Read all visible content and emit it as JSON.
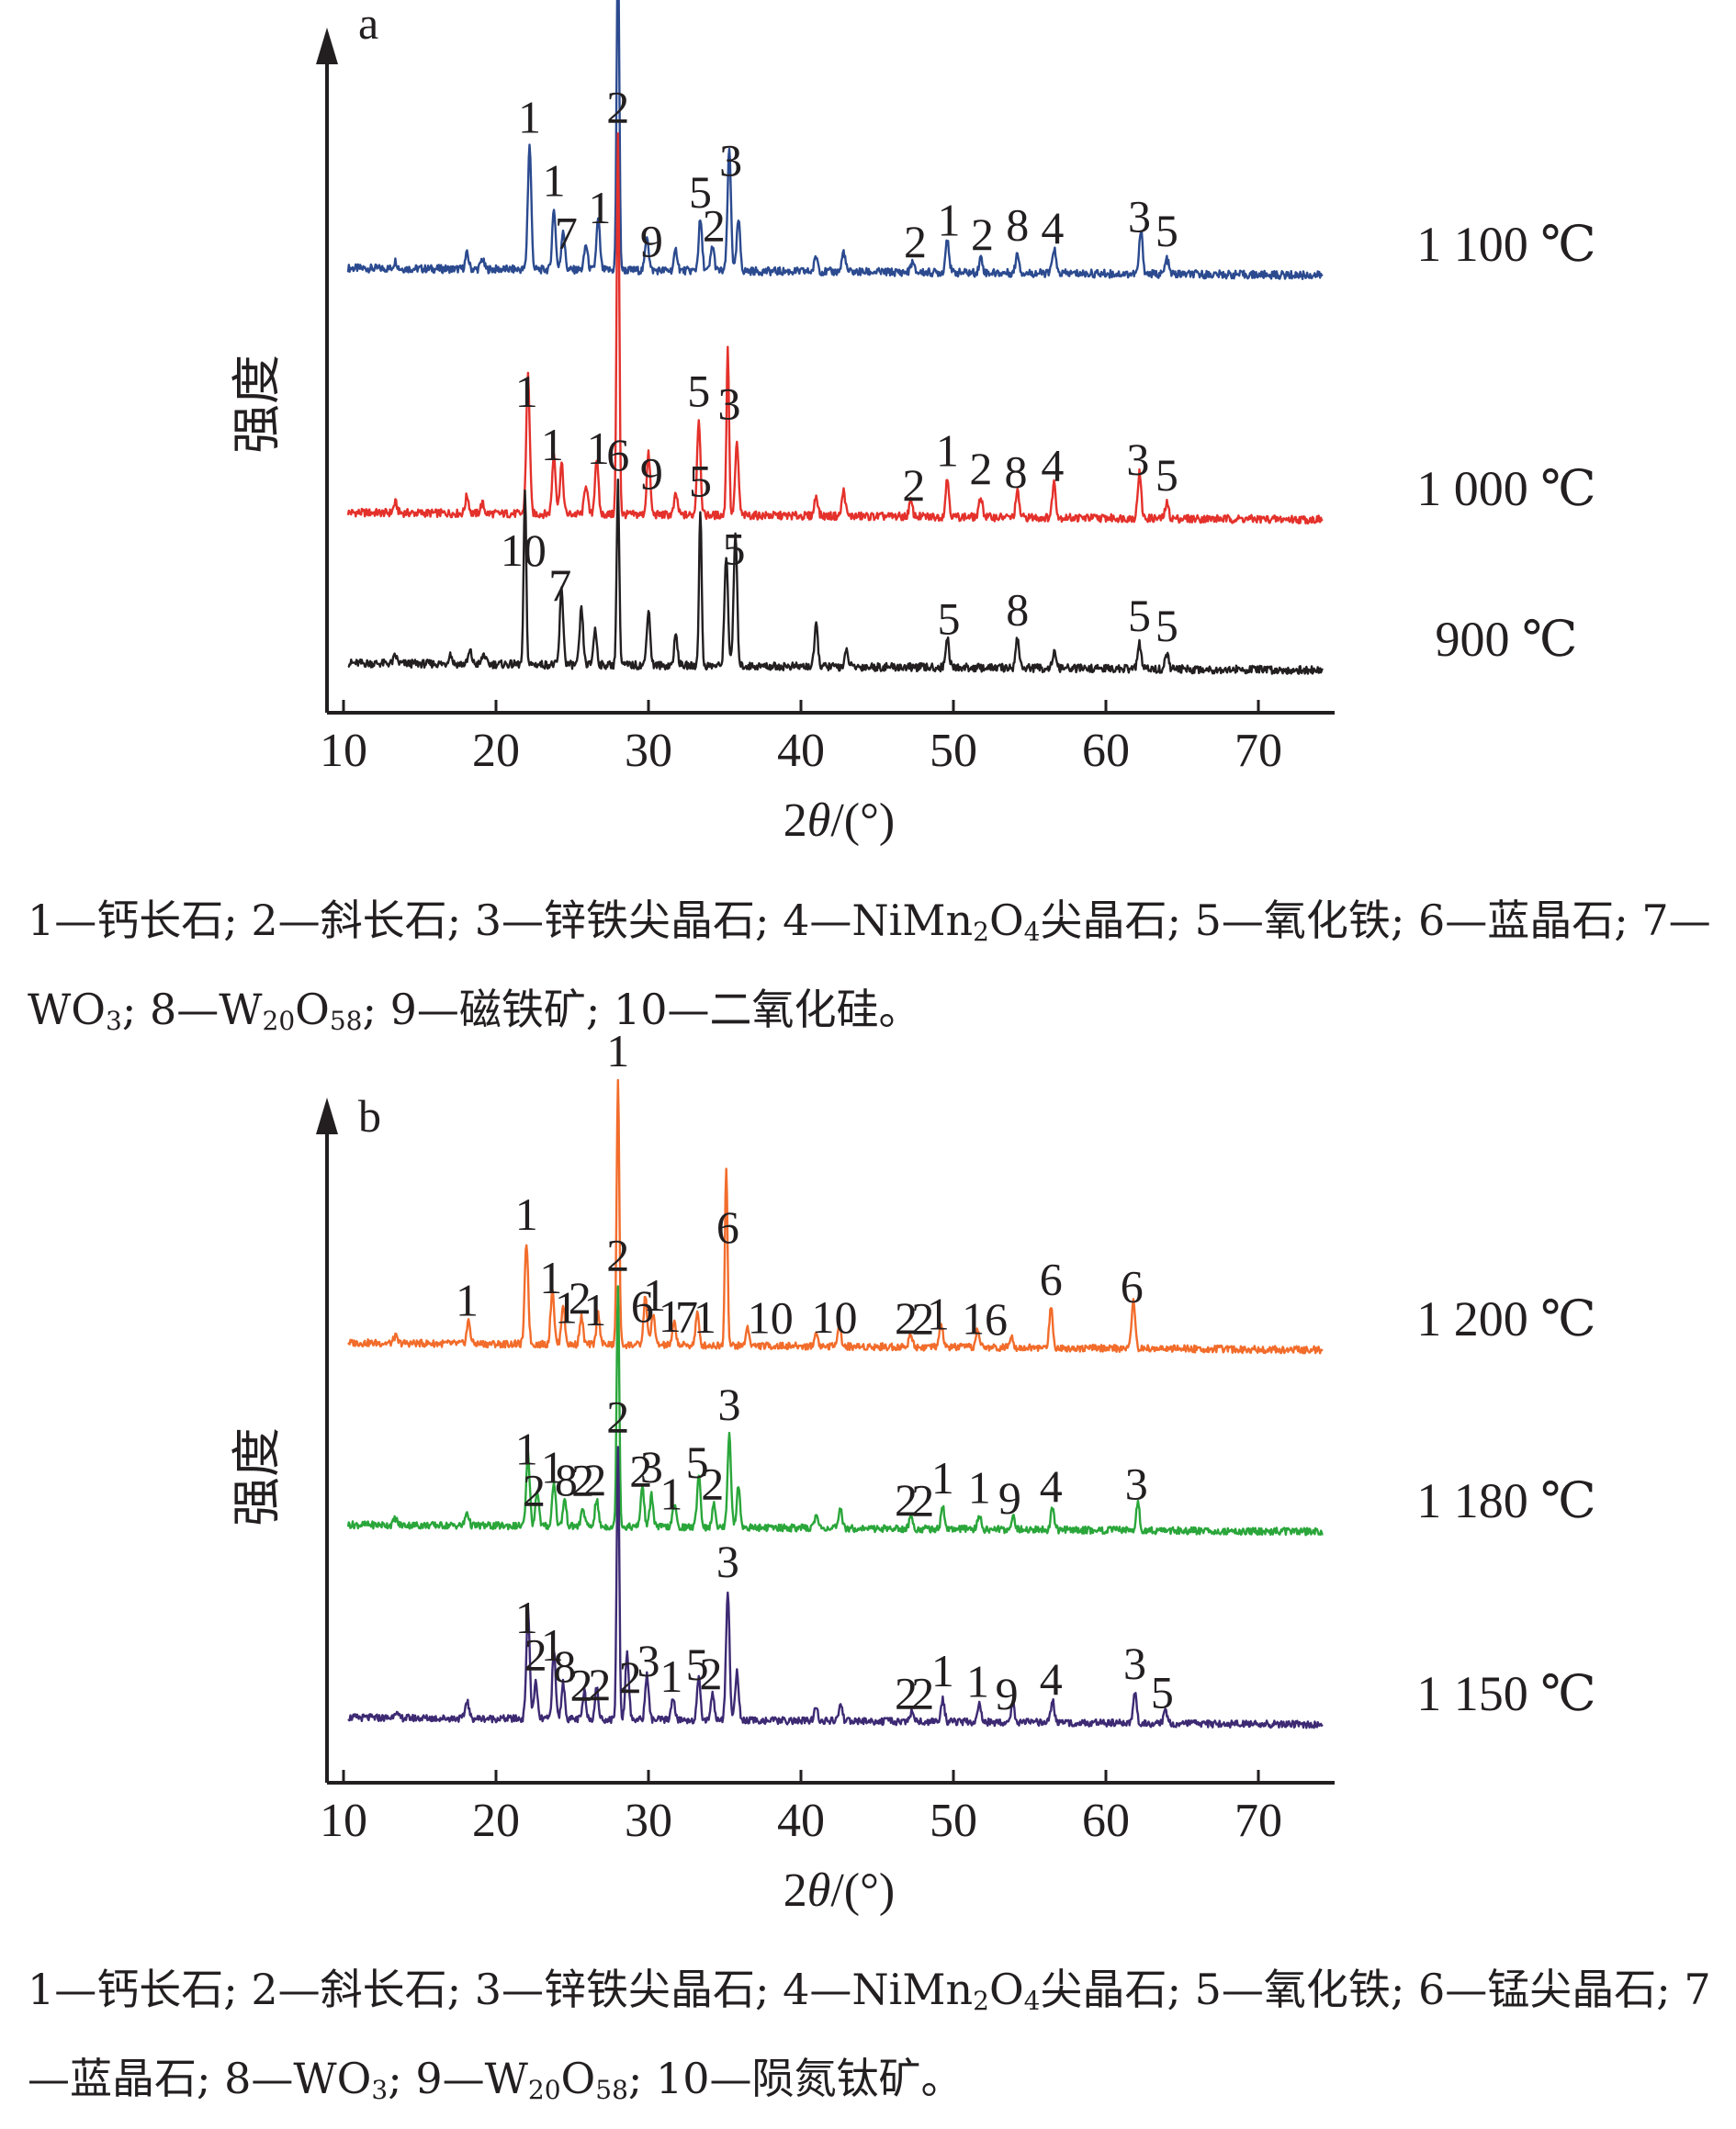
{
  "chart_data": [
    {
      "type": "line",
      "panel_label": "a",
      "xlabel": "2θ/(°)",
      "ylabel": "强度",
      "xlim": [
        10,
        75
      ],
      "x_ticks": [
        10,
        20,
        30,
        40,
        50,
        60,
        70
      ],
      "series": [
        {
          "name": "1 100 ℃",
          "color": "#2b4a8f",
          "peaks": [
            [
              13.4,
              3
            ],
            [
              18.1,
              6
            ],
            [
              19.1,
              4
            ],
            [
              22.2,
              49
            ],
            [
              23.8,
              24
            ],
            [
              24.4,
              16
            ],
            [
              25.9,
              10
            ],
            [
              26.7,
              20
            ],
            [
              28.0,
              132
            ],
            [
              29.9,
              14
            ],
            [
              31.8,
              8
            ],
            [
              33.4,
              20
            ],
            [
              34.2,
              10
            ],
            [
              35.3,
              48
            ],
            [
              35.9,
              20
            ],
            [
              41.0,
              6
            ],
            [
              42.8,
              8
            ],
            [
              47.3,
              4
            ],
            [
              49.6,
              14
            ],
            [
              51.8,
              6
            ],
            [
              54.2,
              8
            ],
            [
              56.6,
              10
            ],
            [
              62.3,
              17
            ],
            [
              64.0,
              6
            ]
          ],
          "labels": [
            [
              "1",
              22.2
            ],
            [
              "1",
              23.8
            ],
            [
              "7",
              24.6
            ],
            [
              "1",
              26.8
            ],
            [
              "2",
              28.0
            ],
            [
              "9",
              30.2
            ],
            [
              "5",
              33.4
            ],
            [
              "2",
              34.3
            ],
            [
              "3",
              35.4
            ],
            [
              "2",
              47.5
            ],
            [
              "1",
              49.7
            ],
            [
              "2",
              51.9
            ],
            [
              "8",
              54.2
            ],
            [
              "4",
              56.5
            ],
            [
              "3",
              62.2
            ],
            [
              "5",
              64.0
            ]
          ]
        },
        {
          "name": "1 000 ℃",
          "color": "#e4312b",
          "peaks": [
            [
              13.4,
              4
            ],
            [
              18.1,
              7
            ],
            [
              19.1,
              4
            ],
            [
              22.1,
              55
            ],
            [
              23.8,
              24
            ],
            [
              24.3,
              20
            ],
            [
              25.9,
              12
            ],
            [
              26.6,
              22
            ],
            [
              28.0,
              150
            ],
            [
              30.0,
              24
            ],
            [
              31.8,
              8
            ],
            [
              33.3,
              38
            ],
            [
              35.2,
              66
            ],
            [
              35.8,
              28
            ],
            [
              41.0,
              8
            ],
            [
              42.8,
              10
            ],
            [
              47.2,
              6
            ],
            [
              49.6,
              15
            ],
            [
              51.8,
              8
            ],
            [
              54.2,
              10
            ],
            [
              56.6,
              14
            ],
            [
              62.2,
              18
            ],
            [
              64.0,
              6
            ]
          ],
          "labels": [
            [
              "1",
              22.0
            ],
            [
              "1",
              23.7
            ],
            [
              "1",
              26.7
            ],
            [
              "2",
              28.0
            ],
            [
              "9",
              30.2
            ],
            [
              "5",
              33.3
            ],
            [
              "3",
              35.3
            ],
            [
              "2",
              47.4
            ],
            [
              "1",
              49.6
            ],
            [
              "2",
              51.8
            ],
            [
              "8",
              54.1
            ],
            [
              "4",
              56.5
            ],
            [
              "3",
              62.1
            ],
            [
              "5",
              64.0
            ]
          ]
        },
        {
          "name": "900 ℃",
          "color": "#231f20",
          "peaks": [
            [
              13.4,
              3
            ],
            [
              17.0,
              4
            ],
            [
              18.3,
              5
            ],
            [
              19.2,
              4
            ],
            [
              21.9,
              68
            ],
            [
              24.3,
              30
            ],
            [
              25.6,
              22
            ],
            [
              26.5,
              14
            ],
            [
              28.0,
              72
            ],
            [
              30.0,
              22
            ],
            [
              31.8,
              12
            ],
            [
              33.4,
              62
            ],
            [
              35.1,
              44
            ],
            [
              35.7,
              52
            ],
            [
              41.0,
              16
            ],
            [
              43.0,
              6
            ],
            [
              49.6,
              12
            ],
            [
              54.2,
              12
            ],
            [
              56.6,
              6
            ],
            [
              62.2,
              10
            ],
            [
              64.0,
              6
            ]
          ],
          "labels": [
            [
              "10",
              21.8
            ],
            [
              "7",
              24.2
            ],
            [
              "6",
              28.0
            ],
            [
              "5",
              33.4
            ],
            [
              "5",
              35.6
            ],
            [
              "5",
              49.7
            ],
            [
              "8",
              54.2
            ],
            [
              "5",
              62.2
            ],
            [
              "5",
              64.0
            ]
          ]
        }
      ],
      "legend_text": "1—钙长石; 2—斜长石; 3—锌铁尖晶石; 4—NiMn₂O₄尖晶石; 5—氧化铁; 6—蓝晶石; 7—WO₃; 8—W₂₀O₅₈; 9—磁铁矿; 10—二氧化硅。"
    },
    {
      "type": "line",
      "panel_label": "b",
      "xlabel": "2θ/(°)",
      "ylabel": "强度",
      "xlim": [
        10,
        75
      ],
      "x_ticks": [
        10,
        20,
        30,
        40,
        50,
        60,
        70
      ],
      "series": [
        {
          "name": "1 200 ℃",
          "color": "#f26c2b",
          "peaks": [
            [
              13.4,
              3
            ],
            [
              18.2,
              10
            ],
            [
              22.0,
              45
            ],
            [
              23.7,
              25
            ],
            [
              24.4,
              18
            ],
            [
              25.6,
              12
            ],
            [
              26.7,
              14
            ],
            [
              28.0,
              118
            ],
            [
              29.8,
              22
            ],
            [
              30.3,
              14
            ],
            [
              31.7,
              10
            ],
            [
              33.2,
              14
            ],
            [
              35.1,
              80
            ],
            [
              36.5,
              8
            ],
            [
              41.0,
              6
            ],
            [
              42.5,
              10
            ],
            [
              47.2,
              6
            ],
            [
              49.2,
              10
            ],
            [
              51.6,
              8
            ],
            [
              53.8,
              6
            ],
            [
              56.4,
              18
            ],
            [
              61.8,
              22
            ]
          ],
          "labels": [
            [
              "1",
              18.1
            ],
            [
              "1",
              22.0
            ],
            [
              "1",
              23.6
            ],
            [
              "1",
              24.6
            ],
            [
              "2",
              25.5
            ],
            [
              "1",
              26.5
            ],
            [
              "1",
              28.0
            ],
            [
              "6",
              29.6
            ],
            [
              "1",
              30.4
            ],
            [
              "1",
              31.4
            ],
            [
              "7",
              32.5
            ],
            [
              "1",
              33.7
            ],
            [
              "6",
              35.2
            ],
            [
              "10",
              38.0
            ],
            [
              "10",
              42.2
            ],
            [
              "2",
              46.9
            ],
            [
              "2",
              48.0
            ],
            [
              "1",
              49.0
            ],
            [
              "1",
              51.3
            ],
            [
              "6",
              52.8
            ],
            [
              "6",
              56.4
            ],
            [
              "6",
              61.7
            ]
          ]
        },
        {
          "name": "1 180 ℃",
          "color": "#2aa63a",
          "peaks": [
            [
              13.4,
              3
            ],
            [
              18.1,
              6
            ],
            [
              22.1,
              32
            ],
            [
              22.7,
              16
            ],
            [
              23.8,
              20
            ],
            [
              24.5,
              12
            ],
            [
              25.7,
              8
            ],
            [
              26.6,
              12
            ],
            [
              28.0,
              108
            ],
            [
              29.6,
              18
            ],
            [
              30.2,
              14
            ],
            [
              31.7,
              10
            ],
            [
              33.3,
              24
            ],
            [
              34.3,
              10
            ],
            [
              35.3,
              42
            ],
            [
              35.9,
              18
            ],
            [
              41.0,
              6
            ],
            [
              42.6,
              8
            ],
            [
              47.2,
              5
            ],
            [
              49.3,
              10
            ],
            [
              51.7,
              6
            ],
            [
              53.9,
              6
            ],
            [
              56.5,
              10
            ],
            [
              62.1,
              12
            ]
          ],
          "labels": [
            [
              "1",
              22.0
            ],
            [
              "2",
              22.5
            ],
            [
              "1",
              23.7
            ],
            [
              "8",
              24.6
            ],
            [
              "2",
              25.7
            ],
            [
              "2",
              26.5
            ],
            [
              "2",
              28.0
            ],
            [
              "2",
              29.5
            ],
            [
              "3",
              30.2
            ],
            [
              "1",
              31.5
            ],
            [
              "5",
              33.2
            ],
            [
              "2",
              34.2
            ],
            [
              "3",
              35.3
            ],
            [
              "2",
              46.9
            ],
            [
              "2",
              48.0
            ],
            [
              "1",
              49.3
            ],
            [
              "1",
              51.7
            ],
            [
              "9",
              53.7
            ],
            [
              "4",
              56.4
            ],
            [
              "3",
              62.0
            ]
          ]
        },
        {
          "name": "1 150 ℃",
          "color": "#3d2a73",
          "peaks": [
            [
              13.4,
              3
            ],
            [
              18.1,
              8
            ],
            [
              22.1,
              48
            ],
            [
              22.6,
              16
            ],
            [
              23.8,
              30
            ],
            [
              24.4,
              16
            ],
            [
              25.8,
              12
            ],
            [
              26.6,
              14
            ],
            [
              28.0,
              122
            ],
            [
              28.6,
              30
            ],
            [
              29.9,
              20
            ],
            [
              31.6,
              10
            ],
            [
              33.3,
              18
            ],
            [
              34.2,
              12
            ],
            [
              35.2,
              58
            ],
            [
              35.8,
              22
            ],
            [
              41.0,
              6
            ],
            [
              42.6,
              8
            ],
            [
              47.3,
              5
            ],
            [
              49.3,
              10
            ],
            [
              51.7,
              8
            ],
            [
              53.9,
              8
            ],
            [
              56.5,
              10
            ],
            [
              61.9,
              14
            ],
            [
              63.9,
              6
            ]
          ],
          "labels": [
            [
              "1",
              22.0
            ],
            [
              "2",
              22.6
            ],
            [
              "1",
              23.7
            ],
            [
              "8",
              24.5
            ],
            [
              "2",
              25.6
            ],
            [
              "2",
              26.8
            ],
            [
              "2",
              28.0
            ],
            [
              "2",
              28.8
            ],
            [
              "3",
              30.0
            ],
            [
              "1",
              31.5
            ],
            [
              "5",
              33.2
            ],
            [
              "2",
              34.1
            ],
            [
              "3",
              35.2
            ],
            [
              "2",
              46.9
            ],
            [
              "2",
              48.0
            ],
            [
              "1",
              49.3
            ],
            [
              "1",
              51.6
            ],
            [
              "9",
              53.5
            ],
            [
              "4",
              56.4
            ],
            [
              "3",
              61.9
            ],
            [
              "5",
              63.7
            ]
          ]
        }
      ],
      "legend_text": "1—钙长石; 2—斜长石; 3—锌铁尖晶石; 4—NiMn₂O₄尖晶石; 5—氧化铁; 6—锰尖晶石; 7—蓝晶石; 8—WO₃; 9—W₂₀O₅₈; 10—陨氮钛矿。"
    }
  ]
}
